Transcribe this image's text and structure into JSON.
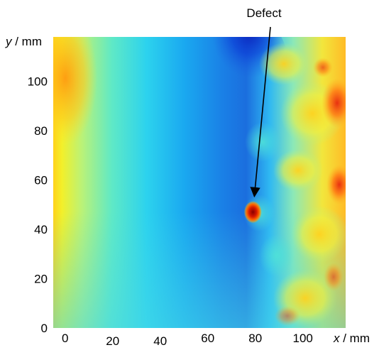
{
  "chart_data": {
    "type": "heatmap",
    "xlabel": {
      "var": "x",
      "unit": " / mm"
    },
    "ylabel": {
      "var": "y",
      "unit": " / mm"
    },
    "xlim": [
      -5,
      118
    ],
    "ylim": [
      0,
      118
    ],
    "x_ticks": [
      {
        "value": 0,
        "label": "0"
      },
      {
        "value": 20,
        "label": "20"
      },
      {
        "value": 40,
        "label": "40"
      },
      {
        "value": 60,
        "label": "60"
      },
      {
        "value": 80,
        "label": "80"
      },
      {
        "value": 100,
        "label": "100"
      }
    ],
    "y_ticks": [
      {
        "value": 0,
        "label": "0"
      },
      {
        "value": 20,
        "label": "20"
      },
      {
        "value": 40,
        "label": "40"
      },
      {
        "value": 60,
        "label": "60"
      },
      {
        "value": 80,
        "label": "80"
      },
      {
        "value": 100,
        "label": "100"
      }
    ],
    "colormap": "jet",
    "annotations": [
      {
        "text": "Defect",
        "x": 79,
        "y": 47
      }
    ]
  }
}
